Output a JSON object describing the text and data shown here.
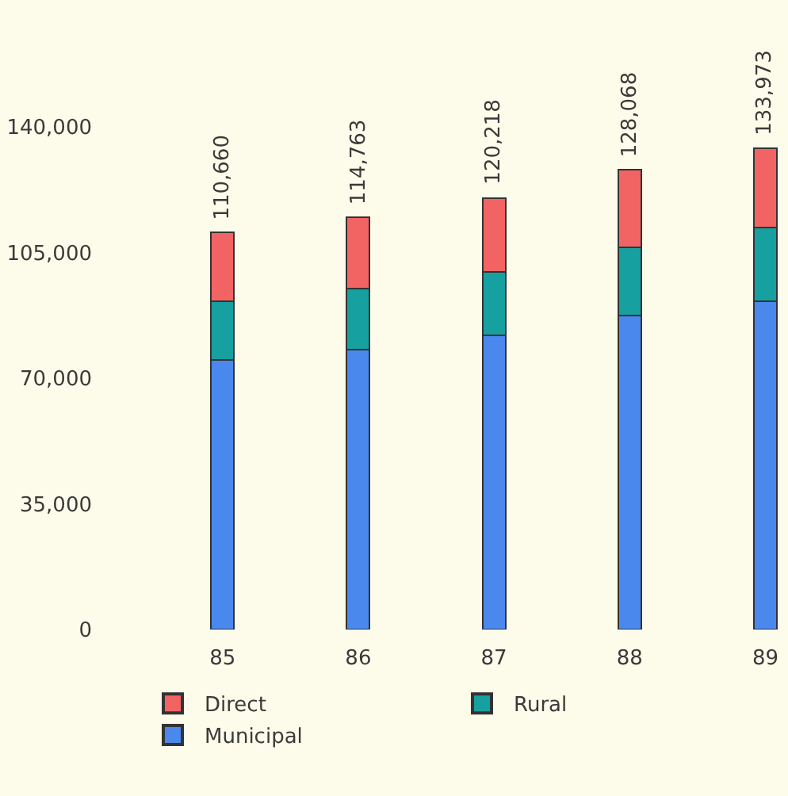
{
  "chart_data": {
    "type": "bar",
    "stacked": true,
    "categories": [
      "85",
      "86",
      "87",
      "88",
      "89"
    ],
    "series": [
      {
        "name": "Municipal",
        "color": "#4a88ee",
        "values": [
          75000,
          78000,
          82000,
          87500,
          91500
        ]
      },
      {
        "name": "Rural",
        "color": "#17a0a0",
        "values": [
          16500,
          17000,
          17500,
          19000,
          20500
        ]
      },
      {
        "name": "Direct",
        "color": "#f26464",
        "values": [
          19160,
          19763,
          20718,
          21568,
          21973
        ]
      }
    ],
    "totals": [
      "110,660",
      "114,763",
      "120,218",
      "128,068",
      "133,973"
    ],
    "ylim": [
      0,
      140000
    ],
    "yticks": [
      0,
      {
        "value": 35000,
        "label": "35,000"
      },
      {
        "value": 70000,
        "label": "70,000"
      },
      {
        "value": 105000,
        "label": "105,000"
      },
      {
        "value": 140000,
        "label": "140,000"
      }
    ],
    "grid": false,
    "legend": "bottom"
  }
}
